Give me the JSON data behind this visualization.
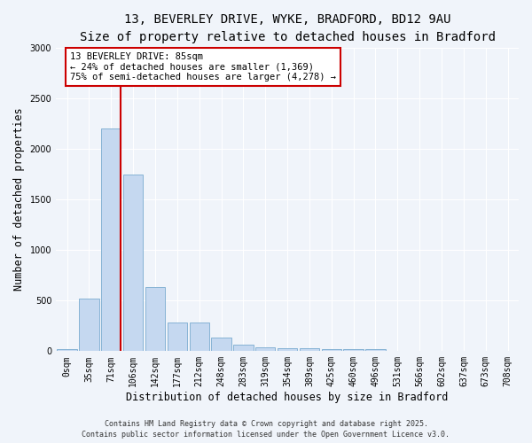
{
  "title_line1": "13, BEVERLEY DRIVE, WYKE, BRADFORD, BD12 9AU",
  "title_line2": "Size of property relative to detached houses in Bradford",
  "xlabel": "Distribution of detached houses by size in Bradford",
  "ylabel": "Number of detached properties",
  "categories": [
    "0sqm",
    "35sqm",
    "71sqm",
    "106sqm",
    "142sqm",
    "177sqm",
    "212sqm",
    "248sqm",
    "283sqm",
    "319sqm",
    "354sqm",
    "389sqm",
    "425sqm",
    "460sqm",
    "496sqm",
    "531sqm",
    "566sqm",
    "602sqm",
    "637sqm",
    "673sqm",
    "708sqm"
  ],
  "values": [
    20,
    520,
    2200,
    1750,
    630,
    280,
    280,
    130,
    65,
    40,
    30,
    30,
    20,
    20,
    20,
    0,
    0,
    0,
    0,
    0,
    0
  ],
  "bar_color": "#c5d8f0",
  "bar_edgecolor": "#7aabcf",
  "bar_linewidth": 0.6,
  "red_line_color": "#cc0000",
  "annotation_title": "13 BEVERLEY DRIVE: 85sqm",
  "annotation_line2": "← 24% of detached houses are smaller (1,369)",
  "annotation_line3": "75% of semi-detached houses are larger (4,278) →",
  "annotation_box_edgecolor": "#cc0000",
  "ylim": [
    0,
    3000
  ],
  "yticks": [
    0,
    500,
    1000,
    1500,
    2000,
    2500,
    3000
  ],
  "footnote1": "Contains HM Land Registry data © Crown copyright and database right 2025.",
  "footnote2": "Contains public sector information licensed under the Open Government Licence v3.0.",
  "bg_color": "#f0f4fa",
  "plot_bg_color": "#f0f4fa",
  "grid_color": "#ffffff",
  "title_fontsize": 10,
  "subtitle_fontsize": 9.5,
  "axis_label_fontsize": 8.5,
  "tick_fontsize": 7,
  "annotation_fontsize": 7.5,
  "footnote_fontsize": 6
}
